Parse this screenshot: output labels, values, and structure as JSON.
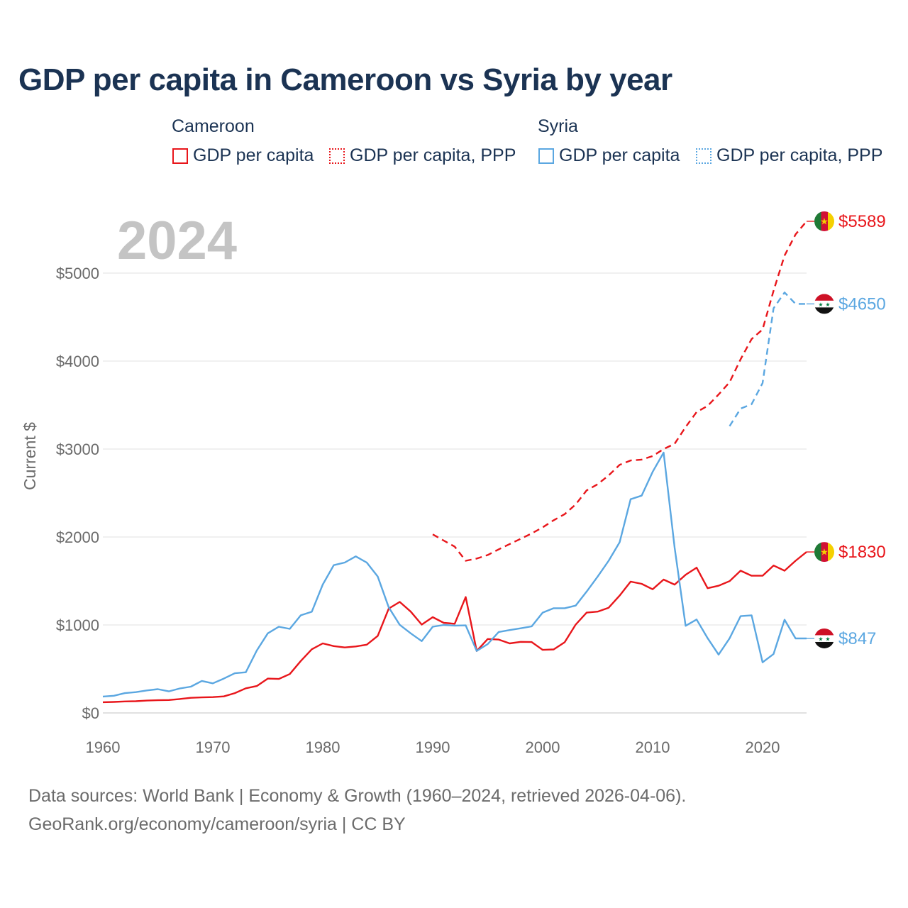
{
  "title": "GDP per capita in Cameroon vs Syria by year",
  "year_watermark": "2024",
  "legend": {
    "groups": [
      {
        "name": "Cameroon",
        "items": [
          {
            "label": "GDP per capita",
            "color": "#e8161b",
            "style": "solid"
          },
          {
            "label": "GDP per capita, PPP",
            "color": "#e8161b",
            "style": "dotted"
          }
        ]
      },
      {
        "name": "Syria",
        "items": [
          {
            "label": "GDP per capita",
            "color": "#5ba7e1",
            "style": "solid"
          },
          {
            "label": "GDP per capita, PPP",
            "color": "#5ba7e1",
            "style": "dotted"
          }
        ]
      }
    ]
  },
  "footer": {
    "line1": "Data sources: World Bank | Economy & Growth (1960–2024, retrieved 2026-04-06).",
    "line2": "GeoRank.org/economy/cameroon/syria | CC BY"
  },
  "chart_data": {
    "type": "line",
    "title": "GDP per capita in Cameroon vs Syria by year",
    "xlabel": "",
    "ylabel": "Current $",
    "xlim": [
      1960,
      2024
    ],
    "ylim": [
      0,
      5600
    ],
    "x_ticks": [
      1960,
      1970,
      1980,
      1990,
      2000,
      2010,
      2020
    ],
    "x_tick_labels": [
      "1960",
      "1970",
      "1980",
      "1990",
      "2000",
      "2010",
      "2020"
    ],
    "y_ticks": [
      0,
      1000,
      2000,
      3000,
      4000,
      5000
    ],
    "y_tick_labels": [
      "$0",
      "$1000",
      "$2000",
      "$3000",
      "$4000",
      "$5000"
    ],
    "grid": true,
    "legend": "top",
    "series": [
      {
        "name": "Cameroon GDP per capita",
        "color": "#e8161b",
        "style": "solid",
        "end_label": "$1830",
        "x_start": 1960,
        "values": [
          122,
          125,
          131,
          133,
          140,
          144,
          147,
          158,
          172,
          177,
          180,
          188,
          225,
          280,
          306,
          390,
          386,
          442,
          590,
          723,
          790,
          760,
          744,
          756,
          776,
          876,
          1186,
          1262,
          1152,
          1004,
          1089,
          1024,
          1014,
          1318,
          704,
          840,
          834,
          790,
          808,
          806,
          717,
          722,
          803,
          1004,
          1140,
          1152,
          1196,
          1334,
          1493,
          1468,
          1406,
          1516,
          1459,
          1570,
          1652,
          1418,
          1446,
          1498,
          1617,
          1560,
          1560,
          1676,
          1617,
          1730,
          1830
        ]
      },
      {
        "name": "Cameroon GDP per capita, PPP",
        "color": "#e8161b",
        "style": "dashed",
        "end_label": "$5589",
        "x_start": 1990,
        "values": [
          2030,
          1960,
          1890,
          1730,
          1755,
          1795,
          1860,
          1920,
          1980,
          2040,
          2110,
          2190,
          2260,
          2370,
          2530,
          2600,
          2700,
          2820,
          2870,
          2880,
          2920,
          3000,
          3060,
          3250,
          3420,
          3490,
          3620,
          3760,
          4020,
          4250,
          4360,
          4800,
          5200,
          5440,
          5589
        ]
      },
      {
        "name": "Syria GDP per capita",
        "color": "#5ba7e1",
        "style": "solid",
        "end_label": "$847",
        "x_start": 1960,
        "values": [
          186,
          195,
          225,
          236,
          256,
          270,
          245,
          278,
          298,
          364,
          336,
          390,
          451,
          462,
          710,
          905,
          980,
          956,
          1110,
          1150,
          1460,
          1680,
          1710,
          1780,
          1710,
          1550,
          1200,
          1002,
          905,
          816,
          980,
          1000,
          993,
          995,
          705,
          782,
          920,
          942,
          962,
          984,
          1140,
          1190,
          1190,
          1220,
          1380,
          1550,
          1730,
          1940,
          2430,
          2470,
          2740,
          2960,
          1880,
          990,
          1062,
          850,
          663,
          848,
          1100,
          1110,
          575,
          670,
          1060,
          847,
          847
        ]
      },
      {
        "name": "Syria GDP per capita, PPP",
        "color": "#5ba7e1",
        "style": "dashed",
        "end_label": "$4650",
        "x_start": 2017,
        "values": [
          3260,
          3460,
          3510,
          3750,
          4600,
          4780,
          4650,
          4650
        ]
      }
    ]
  }
}
